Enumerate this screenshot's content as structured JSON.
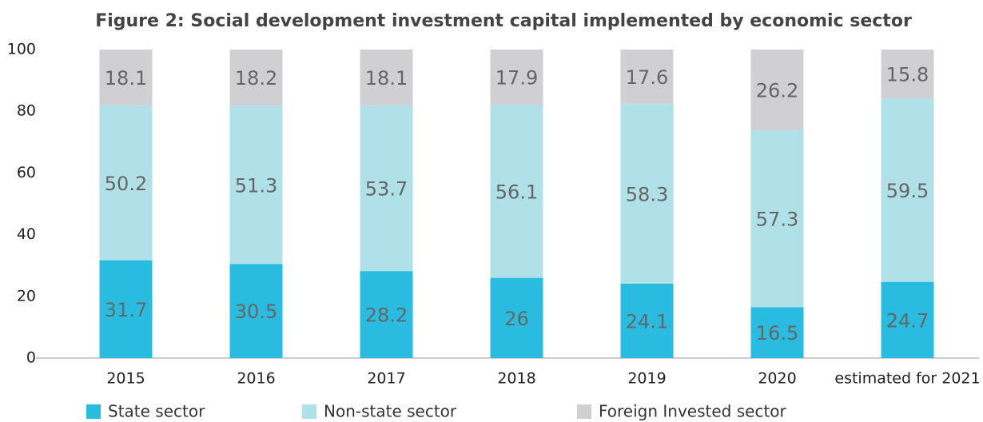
{
  "chart_data": {
    "type": "stacked_bar",
    "title": "Figure 2: Social development investment capital implemented by economic sector",
    "categories": [
      "2015",
      "2016",
      "2017",
      "2018",
      "2019",
      "2020",
      "estimated for 2021"
    ],
    "series": [
      {
        "name": "State sector",
        "color": "#29bce0",
        "values": [
          31.7,
          30.5,
          28.2,
          26,
          24.1,
          16.5,
          24.7
        ]
      },
      {
        "name": "Non-state sector",
        "color": "#b0e0e8",
        "values": [
          50.2,
          51.3,
          53.7,
          56.1,
          58.3,
          57.3,
          59.5
        ]
      },
      {
        "name": "Foreign Invested sector",
        "color": "#d0d0d2",
        "values": [
          18.1,
          18.2,
          18.1,
          17.9,
          17.6,
          26.2,
          15.8
        ]
      }
    ],
    "ylim": [
      0,
      100
    ],
    "yticks": [
      0,
      20,
      40,
      60,
      80,
      100
    ],
    "grid": false
  }
}
